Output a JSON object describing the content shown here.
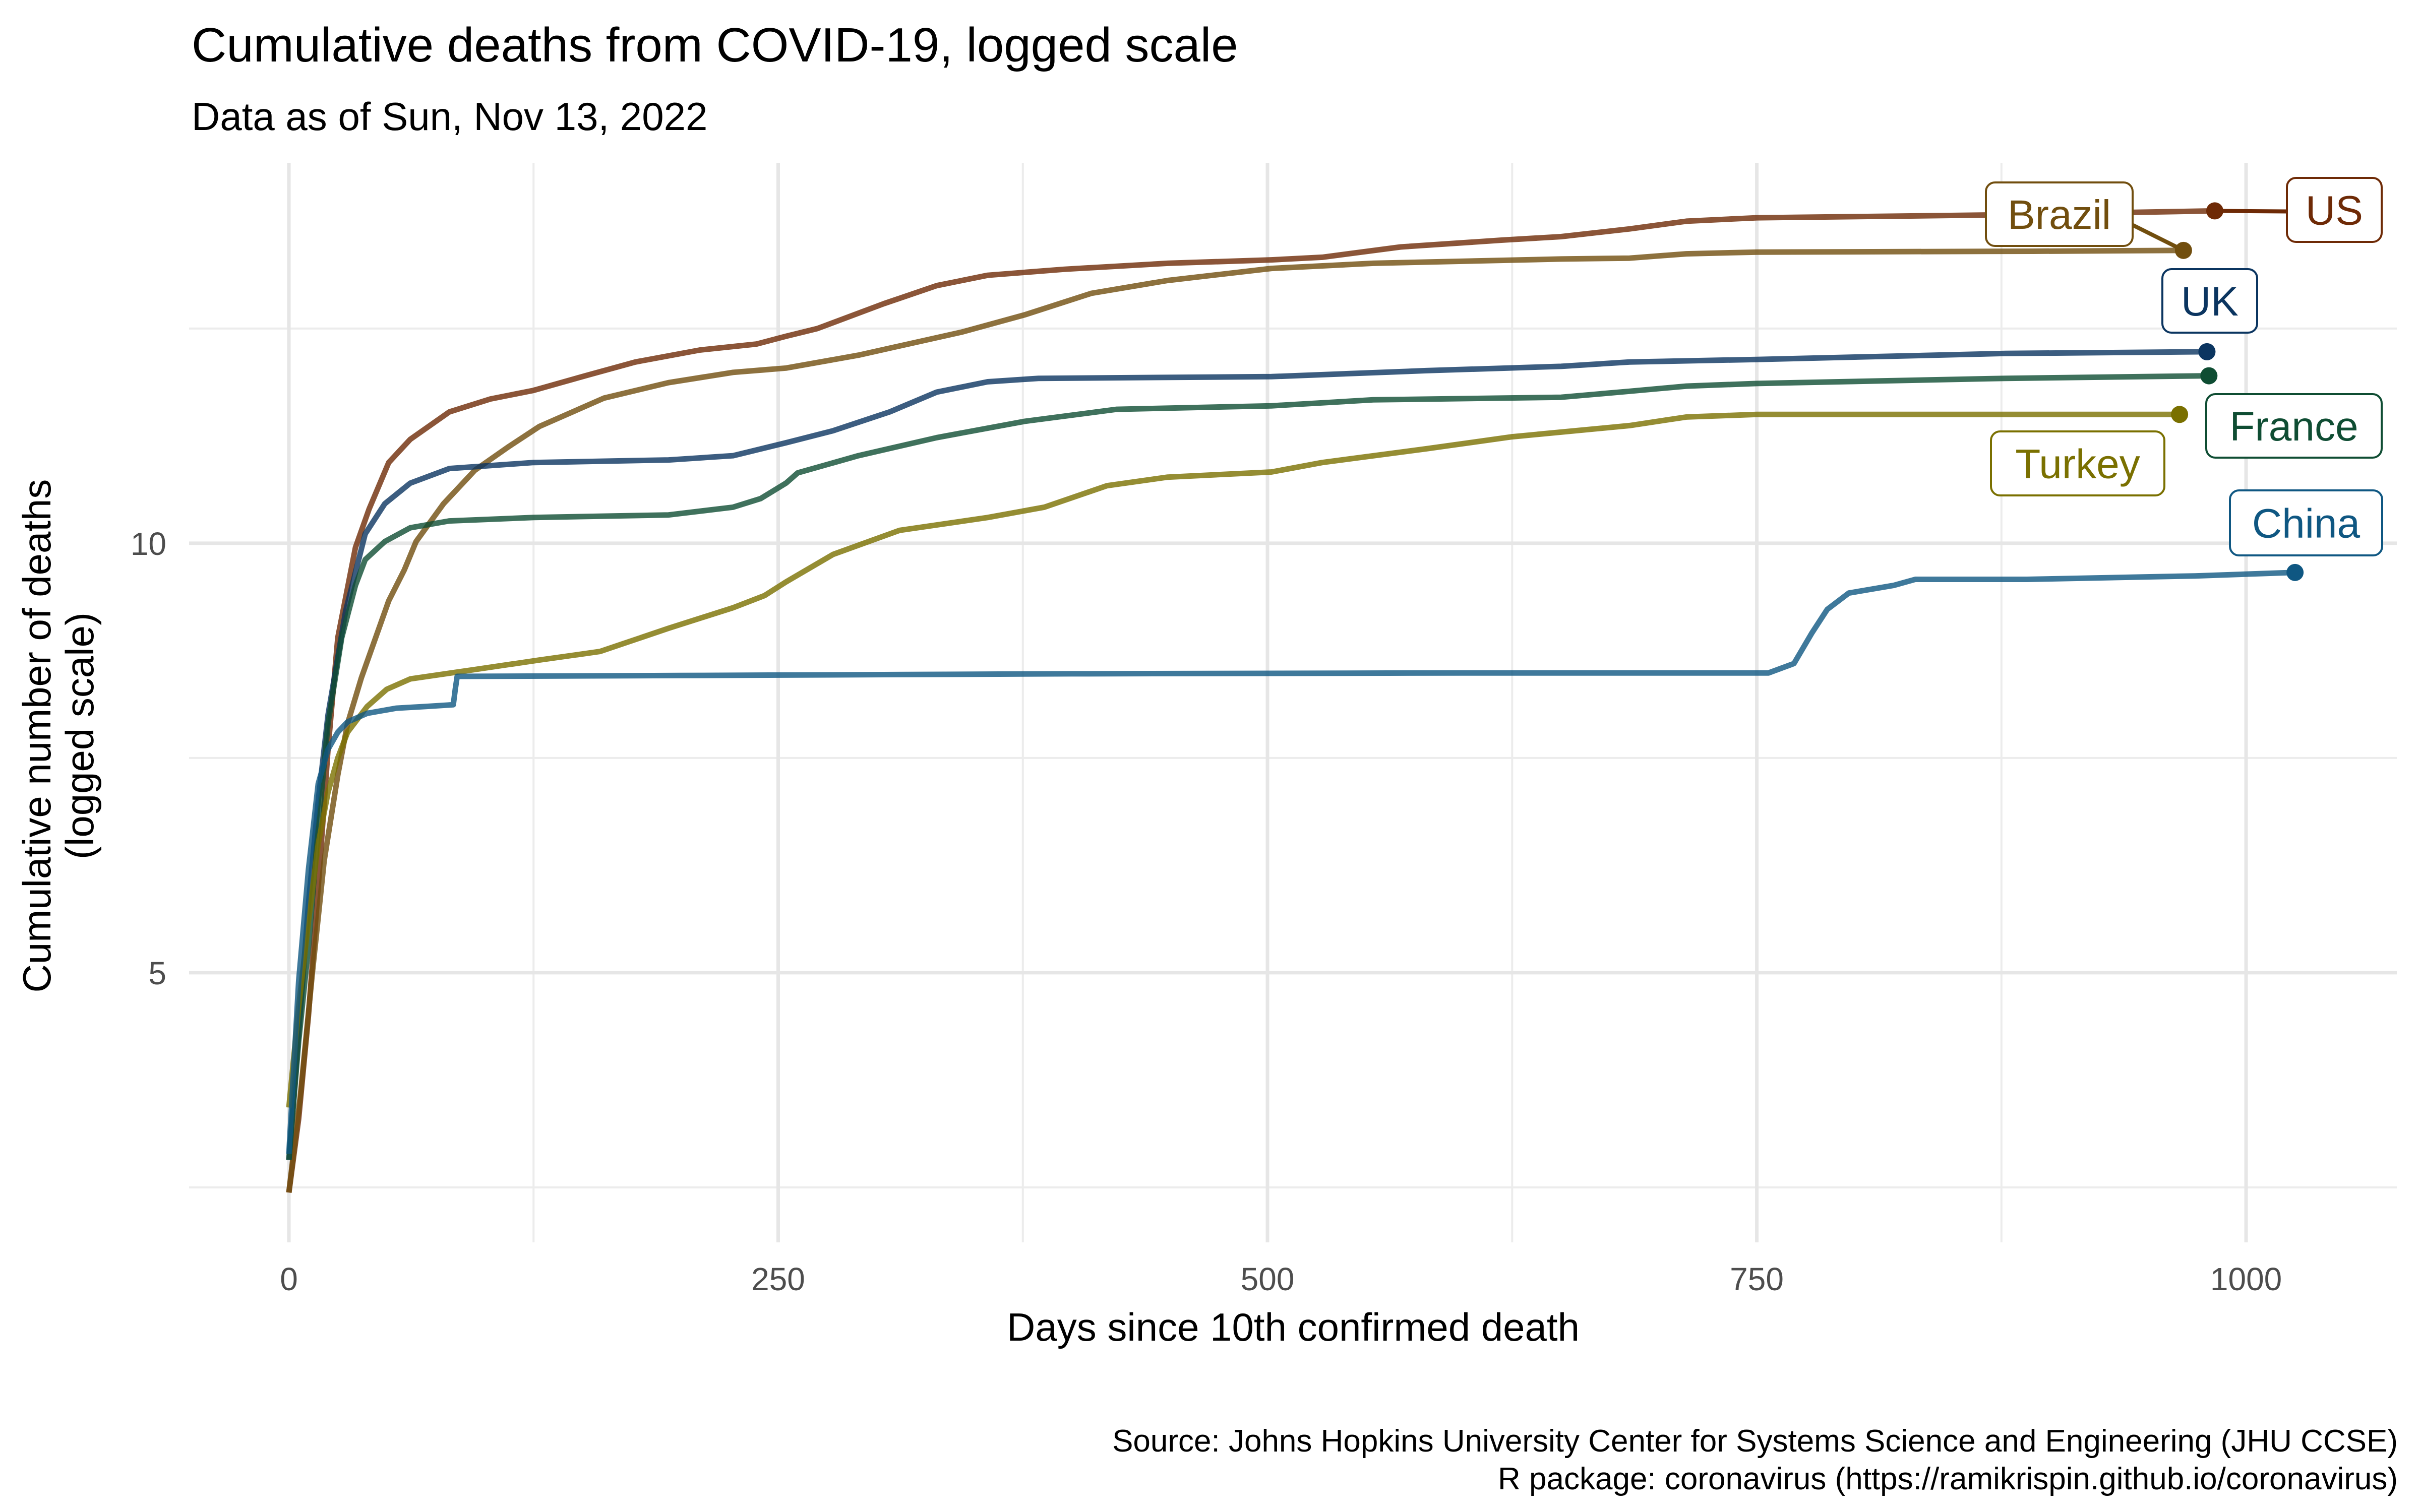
{
  "chart_data": {
    "type": "line",
    "title": "Cumulative deaths from COVID-19, logged scale",
    "subtitle": "Data as of Sun, Nov 13, 2022",
    "xlabel": "Days since 10th confirmed death",
    "ylabel_lines": [
      "Cumulative number of deaths",
      "(logged scale)"
    ],
    "caption_lines": [
      "Source: Johns Hopkins University Center for Systems Science and Engineering (JHU CCSE)",
      "R package: coronavirus (https://ramikrispin.github.io/coronavirus)"
    ],
    "xlim": [
      -51,
      1077
    ],
    "ylim": [
      1.86,
      14.43
    ],
    "x_ticks": [
      0,
      250,
      500,
      750,
      1000
    ],
    "x_minor_ticks": [
      125,
      375,
      625,
      875
    ],
    "y_ticks": [
      5,
      10
    ],
    "y_minor_ticks": [
      2.5,
      7.5,
      12.5
    ],
    "grid": true,
    "legend": "none (direct labels at series ends)",
    "series": [
      {
        "name": "US",
        "color": "#6e2a06",
        "x": [
          0,
          5,
          10,
          15,
          20,
          25,
          34,
          41,
          51,
          62,
          82,
          103,
          125,
          153,
          177,
          210,
          239,
          254,
          270,
          304,
          331,
          357,
          396,
          449,
          502,
          528,
          568,
          620,
          650,
          685,
          714,
          750,
          862,
          984
        ],
        "y": [
          2.44,
          3.3,
          4.5,
          6.0,
          7.6,
          8.9,
          9.95,
          10.4,
          10.94,
          11.21,
          11.53,
          11.68,
          11.78,
          11.96,
          12.11,
          12.25,
          12.32,
          12.41,
          12.5,
          12.79,
          13.0,
          13.12,
          13.19,
          13.26,
          13.3,
          13.33,
          13.45,
          13.53,
          13.57,
          13.66,
          13.75,
          13.79,
          13.82,
          13.87
        ]
      },
      {
        "name": "Brazil",
        "color": "#714e0e",
        "x": [
          0,
          6,
          12,
          18,
          25,
          30,
          37,
          51,
          59,
          65,
          79,
          95,
          112,
          128,
          161,
          194,
          227,
          254,
          291,
          344,
          376,
          410,
          449,
          502,
          554,
          650,
          685,
          714,
          750,
          891,
          968
        ],
        "y": [
          2.44,
          3.6,
          5.0,
          6.3,
          7.3,
          7.9,
          8.43,
          9.33,
          9.69,
          10.02,
          10.46,
          10.85,
          11.12,
          11.36,
          11.69,
          11.87,
          11.99,
          12.04,
          12.19,
          12.46,
          12.66,
          12.91,
          13.06,
          13.2,
          13.26,
          13.31,
          13.32,
          13.37,
          13.39,
          13.4,
          13.41
        ]
      },
      {
        "name": "UK",
        "color": "#0b3560",
        "x": [
          0,
          5,
          10,
          15,
          20,
          29,
          39,
          49,
          62,
          82,
          125,
          194,
          227,
          254,
          278,
          307,
          331,
          357,
          383,
          502,
          581,
          650,
          685,
          750,
          877,
          980
        ],
        "y": [
          2.82,
          4.3,
          5.8,
          7.0,
          8.0,
          9.21,
          10.11,
          10.46,
          10.7,
          10.87,
          10.94,
          10.97,
          11.02,
          11.17,
          11.31,
          11.53,
          11.76,
          11.88,
          11.92,
          11.94,
          12.01,
          12.06,
          12.11,
          12.14,
          12.21,
          12.23
        ]
      },
      {
        "name": "France",
        "color": "#0f4d33",
        "x": [
          0,
          5,
          10,
          15,
          20,
          27,
          34,
          39,
          49,
          62,
          82,
          125,
          194,
          227,
          241,
          254,
          260,
          291,
          331,
          376,
          423,
          502,
          554,
          650,
          685,
          714,
          750,
          877,
          981
        ],
        "y": [
          2.82,
          4.2,
          5.3,
          6.7,
          7.9,
          8.9,
          9.51,
          9.81,
          10.02,
          10.18,
          10.26,
          10.3,
          10.33,
          10.42,
          10.52,
          10.7,
          10.82,
          11.02,
          11.23,
          11.42,
          11.56,
          11.6,
          11.67,
          11.7,
          11.77,
          11.83,
          11.86,
          11.92,
          11.95
        ]
      },
      {
        "name": "Turkey",
        "color": "#7a7000",
        "x": [
          0,
          5,
          10,
          15,
          20,
          25,
          30,
          40,
          50,
          62,
          95,
          128,
          159,
          194,
          227,
          243,
          254,
          278,
          312,
          357,
          386,
          418,
          449,
          502,
          528,
          581,
          625,
          685,
          714,
          750,
          966
        ],
        "y": [
          3.43,
          4.6,
          5.6,
          6.5,
          7.1,
          7.5,
          7.8,
          8.1,
          8.3,
          8.42,
          8.53,
          8.64,
          8.74,
          9.01,
          9.25,
          9.39,
          9.55,
          9.87,
          10.15,
          10.3,
          10.42,
          10.67,
          10.77,
          10.83,
          10.94,
          11.1,
          11.24,
          11.37,
          11.47,
          11.5,
          11.5
        ]
      },
      {
        "name": "China",
        "color": "#0f5782",
        "x": [
          0,
          5,
          10,
          15,
          20,
          25,
          30,
          40,
          55,
          70,
          84,
          85,
          86,
          200,
          400,
          600,
          756,
          769,
          778,
          786,
          797,
          820,
          831,
          888,
          974,
          1025
        ],
        "y": [
          2.89,
          4.9,
          6.2,
          7.2,
          7.6,
          7.8,
          7.92,
          8.02,
          8.08,
          8.1,
          8.12,
          8.3,
          8.45,
          8.46,
          8.48,
          8.49,
          8.49,
          8.6,
          8.95,
          9.23,
          9.42,
          9.51,
          9.58,
          9.58,
          9.62,
          9.66
        ]
      }
    ],
    "end_labels": [
      {
        "name": "US",
        "text": "US",
        "end_day": 984,
        "end_value": 13.87
      },
      {
        "name": "Brazil",
        "text": "Brazil",
        "end_day": 968,
        "end_value": 13.41
      },
      {
        "name": "UK",
        "text": "UK",
        "end_day": 980,
        "end_value": 12.23
      },
      {
        "name": "France",
        "text": "France",
        "end_day": 981,
        "end_value": 11.95
      },
      {
        "name": "Turkey",
        "text": "Turkey",
        "end_day": 966,
        "end_value": 11.5
      },
      {
        "name": "China",
        "text": "China",
        "end_day": 1025,
        "end_value": 9.66
      }
    ]
  }
}
